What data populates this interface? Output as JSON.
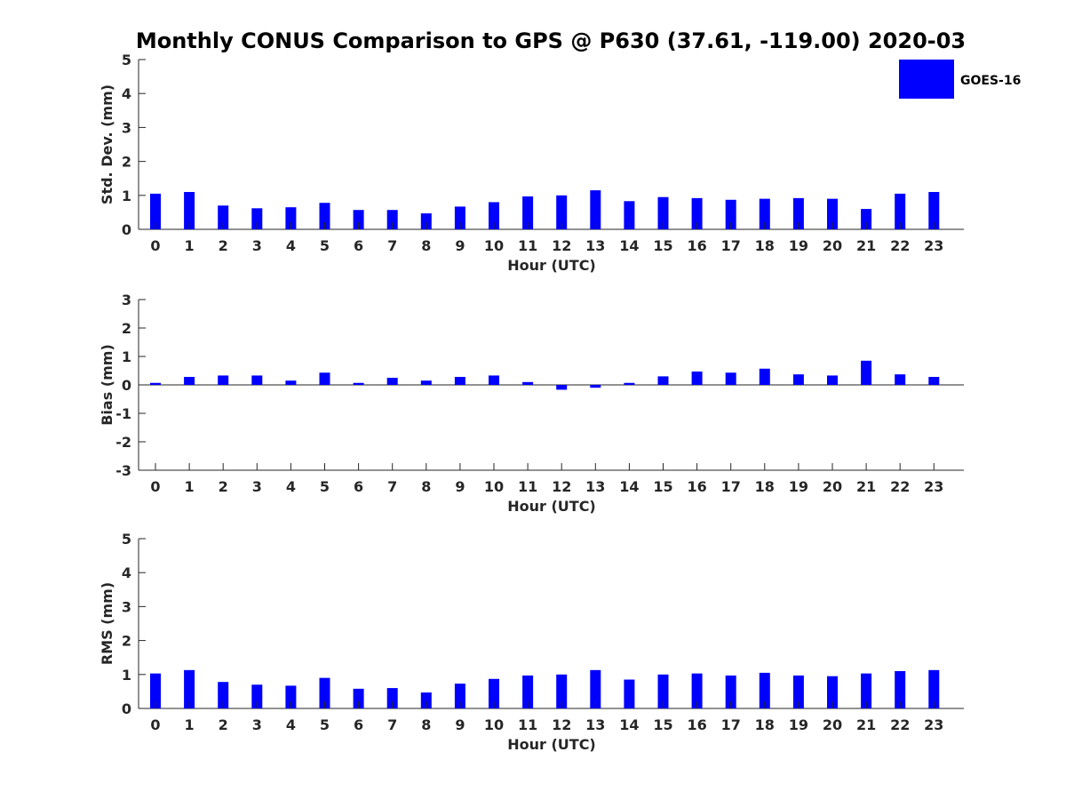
{
  "title": "Monthly CONUS Comparison to GPS @ P630 (37.61, -119.00) 2020-03",
  "colors": {
    "bar": "#0000ff",
    "axis": "#262626",
    "background": "#ffffff"
  },
  "legend": {
    "label": "GOES-16",
    "placement": "top-right"
  },
  "chart_data": [
    {
      "type": "bar",
      "ylabel": "Std. Dev. (mm)",
      "xlabel": "Hour (UTC)",
      "ylim": [
        0,
        5
      ],
      "yticks": [
        0,
        1,
        2,
        3,
        4,
        5
      ],
      "categories": [
        "0",
        "1",
        "2",
        "3",
        "4",
        "5",
        "6",
        "7",
        "8",
        "9",
        "10",
        "11",
        "12",
        "13",
        "14",
        "15",
        "16",
        "17",
        "18",
        "19",
        "20",
        "21",
        "22",
        "23"
      ],
      "series": [
        {
          "name": "GOES-16",
          "values": [
            1.05,
            1.1,
            0.7,
            0.62,
            0.65,
            0.78,
            0.57,
            0.57,
            0.47,
            0.67,
            0.8,
            0.97,
            1.0,
            1.15,
            0.83,
            0.95,
            0.92,
            0.87,
            0.9,
            0.92,
            0.9,
            0.6,
            1.05,
            1.1
          ]
        }
      ],
      "grid": false
    },
    {
      "type": "bar",
      "ylabel": "Bias (mm)",
      "xlabel": "Hour (UTC)",
      "ylim": [
        -3,
        3
      ],
      "yticks": [
        -3,
        -2,
        -1,
        0,
        1,
        2,
        3
      ],
      "categories": [
        "0",
        "1",
        "2",
        "3",
        "4",
        "5",
        "6",
        "7",
        "8",
        "9",
        "10",
        "11",
        "12",
        "13",
        "14",
        "15",
        "16",
        "17",
        "18",
        "19",
        "20",
        "21",
        "22",
        "23"
      ],
      "series": [
        {
          "name": "GOES-16",
          "values": [
            0.07,
            0.28,
            0.33,
            0.33,
            0.15,
            0.43,
            0.07,
            0.25,
            0.15,
            0.28,
            0.33,
            0.1,
            -0.17,
            -0.1,
            0.07,
            0.3,
            0.47,
            0.43,
            0.57,
            0.37,
            0.33,
            0.85,
            0.37,
            0.28
          ]
        }
      ],
      "grid": false
    },
    {
      "type": "bar",
      "ylabel": "RMS (mm)",
      "xlabel": "Hour (UTC)",
      "ylim": [
        0,
        5
      ],
      "yticks": [
        0,
        1,
        2,
        3,
        4,
        5
      ],
      "categories": [
        "0",
        "1",
        "2",
        "3",
        "4",
        "5",
        "6",
        "7",
        "8",
        "9",
        "10",
        "11",
        "12",
        "13",
        "14",
        "15",
        "16",
        "17",
        "18",
        "19",
        "20",
        "21",
        "22",
        "23"
      ],
      "series": [
        {
          "name": "GOES-16",
          "values": [
            1.03,
            1.13,
            0.78,
            0.7,
            0.67,
            0.9,
            0.58,
            0.6,
            0.47,
            0.73,
            0.87,
            0.97,
            1.0,
            1.13,
            0.85,
            1.0,
            1.03,
            0.97,
            1.05,
            0.97,
            0.95,
            1.03,
            1.1,
            1.13
          ]
        }
      ],
      "grid": false
    }
  ]
}
